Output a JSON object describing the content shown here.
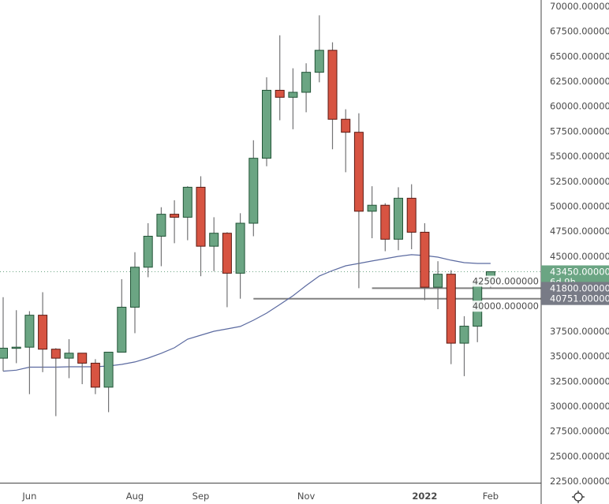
{
  "chart_data": {
    "type": "candlestick",
    "title": "",
    "interval": "weekly",
    "ylim": [
      22500,
      70000
    ],
    "y_ticks": [
      "70000.000000",
      "67500.000000",
      "65000.000000",
      "62500.000000",
      "60000.000000",
      "57500.000000",
      "55000.000000",
      "52500.000000",
      "50000.000000",
      "47500.000000",
      "45000.000000",
      "42500.000000",
      "40000.000000",
      "37500.000000",
      "35000.000000",
      "32500.000000",
      "30000.000000",
      "27500.000000",
      "25000.000000",
      "22500.000000"
    ],
    "x_labels": [
      {
        "label": "Jun",
        "index": 2,
        "bold": false
      },
      {
        "label": "Aug",
        "index": 10,
        "bold": false
      },
      {
        "label": "Sep",
        "index": 15,
        "bold": false
      },
      {
        "label": "Nov",
        "index": 23,
        "bold": false
      },
      {
        "label": "2022",
        "index": 32,
        "bold": true
      },
      {
        "label": "Feb",
        "index": 37,
        "bold": false
      }
    ],
    "candles": [
      [
        34800,
        40900,
        33500,
        35800
      ],
      [
        35800,
        39600,
        34300,
        35900
      ],
      [
        35900,
        39500,
        31200,
        39100
      ],
      [
        39100,
        41400,
        33400,
        35700
      ],
      [
        35700,
        35800,
        29000,
        34800
      ],
      [
        34800,
        36700,
        32800,
        35300
      ],
      [
        35300,
        35300,
        32200,
        34300
      ],
      [
        34300,
        34700,
        31200,
        31900
      ],
      [
        31900,
        35400,
        29400,
        35400
      ],
      [
        35400,
        42700,
        35400,
        39900
      ],
      [
        39900,
        45400,
        37300,
        43900
      ],
      [
        43900,
        48300,
        42900,
        47000
      ],
      [
        47000,
        49900,
        44000,
        49200
      ],
      [
        49200,
        50600,
        46300,
        48900
      ],
      [
        48900,
        52000,
        46600,
        51900
      ],
      [
        51900,
        53000,
        43000,
        46000
      ],
      [
        46000,
        48900,
        43500,
        47300
      ],
      [
        47300,
        47400,
        39900,
        43300
      ],
      [
        43300,
        49300,
        40751,
        48300
      ],
      [
        48300,
        56600,
        47000,
        54800
      ],
      [
        54800,
        62900,
        54000,
        61600
      ],
      [
        61600,
        67100,
        58600,
        60900
      ],
      [
        60900,
        63800,
        57700,
        61400
      ],
      [
        61400,
        64300,
        59400,
        63400
      ],
      [
        63400,
        69100,
        62400,
        65600
      ],
      [
        65600,
        66400,
        55700,
        58700
      ],
      [
        58700,
        59700,
        53400,
        57400
      ],
      [
        57400,
        59300,
        41800,
        49500
      ],
      [
        49500,
        52000,
        46800,
        50100
      ],
      [
        50100,
        50300,
        45500,
        46700
      ],
      [
        46700,
        51900,
        45600,
        50800
      ],
      [
        50800,
        52200,
        45700,
        47400
      ],
      [
        47400,
        48300,
        40600,
        41900
      ],
      [
        41900,
        44500,
        39700,
        43200
      ],
      [
        43200,
        43600,
        34200,
        36300
      ],
      [
        36300,
        39000,
        33000,
        38000
      ],
      [
        38000,
        42800,
        36400,
        42500
      ],
      [
        42500,
        43450,
        41800,
        43450
      ]
    ],
    "candle_format": [
      "open",
      "high",
      "low",
      "close"
    ],
    "moving_average": [
      33500,
      33600,
      33900,
      33900,
      33900,
      33940,
      33940,
      33940,
      34020,
      34180,
      34420,
      34810,
      35290,
      35840,
      36700,
      37100,
      37490,
      37730,
      37970,
      38600,
      39310,
      40170,
      41040,
      42070,
      43020,
      43570,
      44040,
      44280,
      44520,
      44750,
      44990,
      45150,
      45070,
      44910,
      44600,
      44360,
      44280,
      44280
    ],
    "horizontal_lines": [
      {
        "value": 41800,
        "label": "41800.000000",
        "from_index": 27
      },
      {
        "value": 40751,
        "label": "40751.000000",
        "from_index": 18
      }
    ],
    "last_price": {
      "value": 43450,
      "label": "43450.000000",
      "countdown": "6d 9h"
    },
    "colors": {
      "up": "#6ba583",
      "up_border": "#225437",
      "down": "#d75442",
      "down_border": "#5b1a13",
      "wick": "#737375",
      "ma": "#5b6aa0",
      "hline": "#808080",
      "hline_label": "#787b86"
    }
  },
  "settings_icon": "gear-icon"
}
